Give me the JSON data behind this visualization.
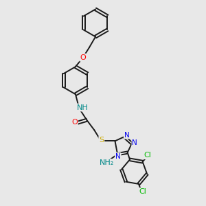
{
  "bg_color": "#e8e8e8",
  "bond_color": "#1a1a1a",
  "bond_width": 1.4,
  "atom_colors": {
    "O": "#ff0000",
    "N": "#0000ee",
    "S": "#ccaa00",
    "Cl": "#00bb00",
    "NH": "#008888",
    "NH2": "#008888",
    "C": "#1a1a1a"
  },
  "figsize": [
    3.0,
    3.0
  ],
  "dpi": 100
}
